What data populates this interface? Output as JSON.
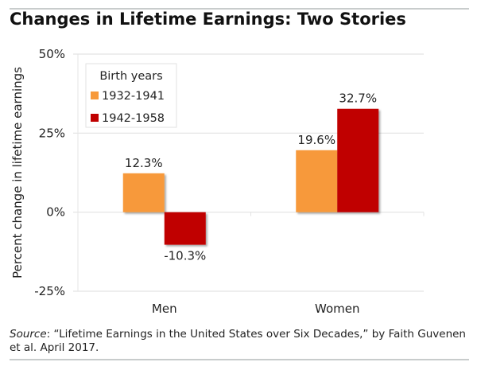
{
  "title": "Changes in Lifetime Earnings: Two Stories",
  "source": {
    "label": "Source",
    "text": ": “Lifetime Earnings in the United States over Six Decades,” by Faith Guvenen et al. April 2017."
  },
  "chart_data": {
    "type": "bar",
    "title": "Changes in Lifetime Earnings: Two Stories",
    "xlabel": "",
    "ylabel": "Percent change in lifetime earnings",
    "categories": [
      "Men",
      "Women"
    ],
    "series": [
      {
        "name": "1932-1941",
        "values": [
          12.3,
          19.6
        ],
        "labels": [
          "12.3%",
          "19.6%"
        ],
        "color": "#f7993a"
      },
      {
        "name": "1942-1958",
        "values": [
          -10.3,
          32.7
        ],
        "labels": [
          "-10.3%",
          "32.7%"
        ],
        "color": "#c00000"
      }
    ],
    "ylim": [
      -25,
      50
    ],
    "yticks": [
      50,
      25,
      0,
      -25
    ],
    "ytick_labels": [
      "50%",
      "25%",
      "0%",
      "-25%"
    ],
    "grid": true,
    "legend": {
      "title": "Birth years",
      "position": "top-left"
    }
  }
}
